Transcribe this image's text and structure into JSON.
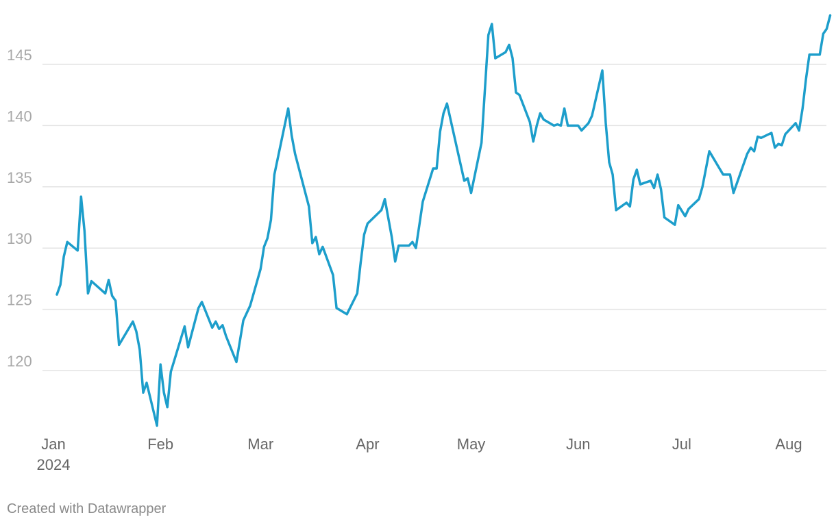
{
  "chart_data": {
    "type": "line",
    "title": "",
    "xlabel": "",
    "ylabel": "",
    "line_color": "#1d9ecb",
    "grid": true,
    "x_range": [
      "2024-01-01",
      "2024-08-12"
    ],
    "ylim": [
      115,
      149
    ],
    "y_ticks": [
      120,
      125,
      130,
      135,
      140,
      145
    ],
    "x_ticks": [
      {
        "date": "2024-01-01",
        "label": "Jan",
        "sublabel": "2024"
      },
      {
        "date": "2024-02-01",
        "label": "Feb",
        "sublabel": ""
      },
      {
        "date": "2024-03-01",
        "label": "Mar",
        "sublabel": ""
      },
      {
        "date": "2024-04-01",
        "label": "Apr",
        "sublabel": ""
      },
      {
        "date": "2024-05-01",
        "label": "May",
        "sublabel": ""
      },
      {
        "date": "2024-06-01",
        "label": "Jun",
        "sublabel": ""
      },
      {
        "date": "2024-07-01",
        "label": "Jul",
        "sublabel": ""
      },
      {
        "date": "2024-08-01",
        "label": "Aug",
        "sublabel": ""
      }
    ],
    "series": [
      {
        "name": "",
        "points": [
          [
            "2024-01-02",
            126.2
          ],
          [
            "2024-01-03",
            127.0
          ],
          [
            "2024-01-04",
            129.3
          ],
          [
            "2024-01-05",
            130.5
          ],
          [
            "2024-01-08",
            129.8
          ],
          [
            "2024-01-09",
            134.2
          ],
          [
            "2024-01-10",
            131.4
          ],
          [
            "2024-01-11",
            126.3
          ],
          [
            "2024-01-12",
            127.3
          ],
          [
            "2024-01-16",
            126.3
          ],
          [
            "2024-01-17",
            127.4
          ],
          [
            "2024-01-18",
            126.1
          ],
          [
            "2024-01-19",
            125.7
          ],
          [
            "2024-01-20",
            122.1
          ],
          [
            "2024-01-24",
            124.0
          ],
          [
            "2024-01-25",
            123.2
          ],
          [
            "2024-01-26",
            121.7
          ],
          [
            "2024-01-27",
            118.2
          ],
          [
            "2024-01-28",
            119.0
          ],
          [
            "2024-01-31",
            115.5
          ],
          [
            "2024-02-01",
            120.5
          ],
          [
            "2024-02-02",
            118.2
          ],
          [
            "2024-02-03",
            117.0
          ],
          [
            "2024-02-04",
            119.9
          ],
          [
            "2024-02-08",
            123.6
          ],
          [
            "2024-02-09",
            121.9
          ],
          [
            "2024-02-12",
            125.1
          ],
          [
            "2024-02-13",
            125.6
          ],
          [
            "2024-02-16",
            123.5
          ],
          [
            "2024-02-17",
            124.0
          ],
          [
            "2024-02-18",
            123.4
          ],
          [
            "2024-02-19",
            123.7
          ],
          [
            "2024-02-20",
            122.8
          ],
          [
            "2024-02-23",
            120.7
          ],
          [
            "2024-02-25",
            124.1
          ],
          [
            "2024-02-27",
            125.3
          ],
          [
            "2024-03-01",
            128.3
          ],
          [
            "2024-03-02",
            130.1
          ],
          [
            "2024-03-03",
            130.8
          ],
          [
            "2024-03-04",
            132.3
          ],
          [
            "2024-03-05",
            136.0
          ],
          [
            "2024-03-09",
            141.4
          ],
          [
            "2024-03-10",
            139.2
          ],
          [
            "2024-03-11",
            137.7
          ],
          [
            "2024-03-15",
            133.4
          ],
          [
            "2024-03-16",
            130.4
          ],
          [
            "2024-03-17",
            130.9
          ],
          [
            "2024-03-18",
            129.5
          ],
          [
            "2024-03-19",
            130.1
          ],
          [
            "2024-03-22",
            127.8
          ],
          [
            "2024-03-23",
            125.1
          ],
          [
            "2024-03-26",
            124.6
          ],
          [
            "2024-03-29",
            126.3
          ],
          [
            "2024-03-30",
            128.8
          ],
          [
            "2024-03-31",
            131.1
          ],
          [
            "2024-04-01",
            132.0
          ],
          [
            "2024-04-05",
            133.1
          ],
          [
            "2024-04-06",
            134.0
          ],
          [
            "2024-04-08",
            130.9
          ],
          [
            "2024-04-09",
            128.9
          ],
          [
            "2024-04-10",
            130.2
          ],
          [
            "2024-04-13",
            130.2
          ],
          [
            "2024-04-14",
            130.5
          ],
          [
            "2024-04-15",
            130.0
          ],
          [
            "2024-04-16",
            131.9
          ],
          [
            "2024-04-17",
            133.8
          ],
          [
            "2024-04-20",
            136.5
          ],
          [
            "2024-04-21",
            136.5
          ],
          [
            "2024-04-22",
            139.5
          ],
          [
            "2024-04-23",
            141.0
          ],
          [
            "2024-04-24",
            141.8
          ],
          [
            "2024-04-29",
            135.5
          ],
          [
            "2024-04-30",
            135.7
          ],
          [
            "2024-05-01",
            134.5
          ],
          [
            "2024-05-04",
            138.6
          ],
          [
            "2024-05-06",
            147.4
          ],
          [
            "2024-05-07",
            148.3
          ],
          [
            "2024-05-08",
            145.5
          ],
          [
            "2024-05-11",
            146.0
          ],
          [
            "2024-05-12",
            146.6
          ],
          [
            "2024-05-13",
            145.5
          ],
          [
            "2024-05-14",
            142.7
          ],
          [
            "2024-05-15",
            142.5
          ],
          [
            "2024-05-18",
            140.3
          ],
          [
            "2024-05-19",
            138.7
          ],
          [
            "2024-05-20",
            140.0
          ],
          [
            "2024-05-21",
            141.0
          ],
          [
            "2024-05-22",
            140.5
          ],
          [
            "2024-05-25",
            140.0
          ],
          [
            "2024-05-26",
            140.1
          ],
          [
            "2024-05-27",
            140.0
          ],
          [
            "2024-05-28",
            141.4
          ],
          [
            "2024-05-29",
            140.0
          ],
          [
            "2024-06-01",
            140.0
          ],
          [
            "2024-06-02",
            139.6
          ],
          [
            "2024-06-04",
            140.2
          ],
          [
            "2024-06-05",
            140.8
          ],
          [
            "2024-06-08",
            144.5
          ],
          [
            "2024-06-09",
            140.2
          ],
          [
            "2024-06-10",
            137.0
          ],
          [
            "2024-06-11",
            136.0
          ],
          [
            "2024-06-12",
            133.1
          ],
          [
            "2024-06-15",
            133.7
          ],
          [
            "2024-06-16",
            133.4
          ],
          [
            "2024-06-17",
            135.6
          ],
          [
            "2024-06-18",
            136.4
          ],
          [
            "2024-06-19",
            135.2
          ],
          [
            "2024-06-22",
            135.5
          ],
          [
            "2024-06-23",
            134.9
          ],
          [
            "2024-06-24",
            136.0
          ],
          [
            "2024-06-25",
            134.8
          ],
          [
            "2024-06-26",
            132.5
          ],
          [
            "2024-06-29",
            131.9
          ],
          [
            "2024-06-30",
            133.5
          ],
          [
            "2024-07-02",
            132.6
          ],
          [
            "2024-07-03",
            133.2
          ],
          [
            "2024-07-06",
            134.0
          ],
          [
            "2024-07-07",
            135.0
          ],
          [
            "2024-07-09",
            137.9
          ],
          [
            "2024-07-13",
            136.0
          ],
          [
            "2024-07-15",
            136.0
          ],
          [
            "2024-07-16",
            134.5
          ],
          [
            "2024-07-20",
            137.7
          ],
          [
            "2024-07-21",
            138.2
          ],
          [
            "2024-07-22",
            137.9
          ],
          [
            "2024-07-23",
            139.1
          ],
          [
            "2024-07-24",
            139.0
          ],
          [
            "2024-07-27",
            139.4
          ],
          [
            "2024-07-28",
            138.2
          ],
          [
            "2024-07-29",
            138.5
          ],
          [
            "2024-07-30",
            138.4
          ],
          [
            "2024-07-31",
            139.3
          ],
          [
            "2024-08-03",
            140.2
          ],
          [
            "2024-08-04",
            139.6
          ],
          [
            "2024-08-05",
            141.4
          ],
          [
            "2024-08-06",
            143.8
          ],
          [
            "2024-08-07",
            145.8
          ],
          [
            "2024-08-10",
            145.8
          ],
          [
            "2024-08-11",
            147.5
          ],
          [
            "2024-08-12",
            147.9
          ],
          [
            "2024-08-13",
            149.0
          ]
        ]
      }
    ]
  },
  "credit": "Created with Datawrapper"
}
